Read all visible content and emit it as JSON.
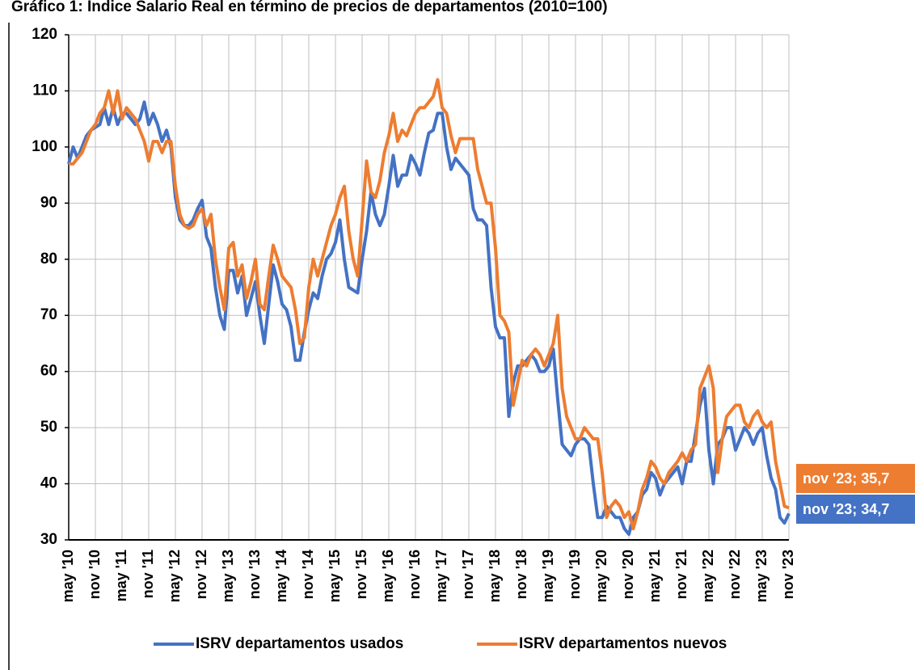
{
  "chart_data": {
    "type": "line",
    "title": "Gráfico 1: Índice Salario Real en término de precios de departamentos (2010=100)",
    "categories": [
      "may '10",
      null,
      null,
      null,
      null,
      null,
      "nov '10",
      null,
      null,
      null,
      null,
      null,
      "may '11",
      null,
      null,
      null,
      null,
      null,
      "nov '11",
      null,
      null,
      null,
      null,
      null,
      "may '12",
      null,
      null,
      null,
      null,
      null,
      "nov '12",
      null,
      null,
      null,
      null,
      null,
      "may '13",
      null,
      null,
      null,
      null,
      null,
      "nov '13",
      null,
      null,
      null,
      null,
      null,
      "may '14",
      null,
      null,
      null,
      null,
      null,
      "nov '14",
      null,
      null,
      null,
      null,
      null,
      "may '15",
      null,
      null,
      null,
      null,
      null,
      "nov '15",
      null,
      null,
      null,
      null,
      null,
      "may '16",
      null,
      null,
      null,
      null,
      null,
      "nov '16",
      null,
      null,
      null,
      null,
      null,
      "may '17",
      null,
      null,
      null,
      null,
      null,
      "nov '17",
      null,
      null,
      null,
      null,
      null,
      "may '18",
      null,
      null,
      null,
      null,
      null,
      "nov '18",
      null,
      null,
      null,
      null,
      null,
      "may '19",
      null,
      null,
      null,
      null,
      null,
      "nov '19",
      null,
      null,
      null,
      null,
      null,
      "may '20",
      null,
      null,
      null,
      null,
      null,
      "nov '20",
      null,
      null,
      null,
      null,
      null,
      "may '21",
      null,
      null,
      null,
      null,
      null,
      "nov '21",
      null,
      null,
      null,
      null,
      null,
      "may '22",
      null,
      null,
      null,
      null,
      null,
      "nov '22",
      null,
      null,
      null,
      null,
      null,
      "may '23",
      null,
      null,
      null,
      null,
      null,
      "nov '23"
    ],
    "series": [
      {
        "name": "ISRV departamentos usados",
        "color": "#4472c4",
        "values": [
          97,
          100,
          98,
          100,
          102,
          103,
          103.5,
          104,
          107,
          104,
          107,
          104,
          106,
          106,
          105,
          104,
          105,
          108,
          104,
          106,
          104,
          101,
          103,
          100,
          91,
          87,
          86,
          86,
          87,
          89,
          90.5,
          84,
          82,
          75,
          70,
          67.5,
          78,
          78,
          74,
          77,
          70,
          73,
          76,
          70,
          65,
          72,
          79,
          76,
          72,
          71,
          68,
          62,
          62,
          67,
          71,
          74,
          73,
          77,
          80,
          81,
          83,
          87,
          80,
          75,
          74.5,
          74,
          80,
          85,
          92,
          88,
          86,
          88,
          93,
          98.5,
          93,
          95,
          95,
          98.5,
          97,
          95,
          99,
          102.5,
          103,
          106,
          106,
          100,
          96,
          98,
          97,
          96,
          95,
          89,
          87,
          87,
          86,
          75,
          68,
          66,
          66,
          52,
          58,
          61,
          61,
          62,
          63,
          62,
          60,
          60,
          61,
          64,
          55,
          47,
          46,
          45,
          47,
          48,
          48,
          47,
          40,
          34,
          34,
          36,
          35,
          34,
          34,
          32,
          31,
          34,
          35,
          38,
          39,
          42,
          41,
          38,
          40,
          41,
          42,
          43,
          40,
          44,
          44,
          49,
          54,
          57,
          46,
          40,
          47,
          48,
          50,
          50,
          46,
          48,
          50,
          49,
          47,
          49,
          50,
          45,
          41,
          39,
          34,
          33,
          34.7
        ],
        "value_labels": [
          null,
          null,
          null,
          null,
          null,
          null,
          null,
          null,
          null,
          null,
          null,
          null,
          null,
          null,
          null,
          null,
          null,
          null,
          null,
          null,
          null,
          null,
          null,
          null,
          null,
          null,
          null,
          null,
          null,
          null,
          null,
          null,
          null,
          null,
          null,
          null,
          null,
          null,
          null,
          null,
          null,
          null,
          null,
          null,
          null,
          null,
          null,
          null,
          null,
          null,
          null,
          null,
          null,
          null,
          null,
          null,
          null,
          null,
          null,
          null,
          null,
          null,
          null,
          null,
          null,
          null,
          null,
          null,
          null,
          null,
          null,
          null,
          null,
          null,
          null,
          null,
          null,
          null,
          null,
          null,
          null,
          null,
          null,
          null,
          null,
          null,
          null,
          null,
          null,
          null,
          null,
          null,
          null,
          null,
          null,
          null,
          null,
          null,
          null,
          null,
          null,
          null,
          null,
          null,
          null,
          null,
          null,
          null,
          null,
          null,
          null,
          null,
          null,
          null,
          null,
          null,
          null,
          null,
          null,
          null,
          null,
          null,
          null,
          null,
          null,
          null,
          null,
          null,
          null,
          null,
          null,
          null,
          null,
          null,
          null,
          null,
          null,
          null,
          null,
          null,
          null,
          null,
          null,
          null,
          null,
          null,
          null,
          null,
          null,
          null,
          null,
          null,
          null,
          null,
          null,
          null,
          null,
          null,
          null,
          null,
          null,
          null,
          "nov '23; 34,7"
        ]
      },
      {
        "name": "ISRV departamentos nuevos",
        "color": "#ed7d31",
        "values": [
          97,
          97,
          98,
          99,
          101,
          103,
          104,
          106,
          107,
          110,
          106,
          110,
          105,
          107,
          106,
          105,
          103,
          101,
          97.5,
          101,
          101,
          99,
          101,
          101,
          93,
          88,
          86,
          85.5,
          86,
          88,
          89,
          86,
          88,
          80,
          75,
          71,
          82,
          83,
          77,
          79,
          73,
          76,
          80,
          72,
          71,
          77,
          82.5,
          80,
          77,
          76,
          75,
          71,
          65,
          66,
          75,
          80,
          77,
          80,
          83,
          86,
          88,
          91,
          93,
          85,
          80,
          77,
          87,
          97.5,
          92,
          91,
          94,
          99,
          102,
          106,
          101,
          103,
          102,
          104,
          106,
          107,
          107,
          108,
          109,
          112,
          107,
          106,
          102,
          99,
          101.5,
          101.5,
          101.5,
          101.5,
          96,
          93,
          90,
          90,
          82,
          70,
          69,
          67,
          54,
          58,
          62,
          61,
          63,
          64,
          63,
          61,
          63,
          65,
          70,
          57,
          52,
          50,
          48,
          48,
          50,
          49,
          48,
          48,
          42,
          34,
          36,
          37,
          36,
          34,
          35,
          32,
          35,
          39,
          41,
          44,
          43,
          41,
          40,
          42,
          43,
          44,
          45.5,
          44,
          46,
          47,
          57,
          59,
          61,
          57,
          42,
          48,
          52,
          53,
          54,
          54,
          51,
          50,
          52,
          53,
          51,
          50,
          51,
          44,
          40,
          36,
          35.7
        ],
        "value_labels": [
          null,
          null,
          null,
          null,
          null,
          null,
          null,
          null,
          null,
          null,
          null,
          null,
          null,
          null,
          null,
          null,
          null,
          null,
          null,
          null,
          null,
          null,
          null,
          null,
          null,
          null,
          null,
          null,
          null,
          null,
          null,
          null,
          null,
          null,
          null,
          null,
          null,
          null,
          null,
          null,
          null,
          null,
          null,
          null,
          null,
          null,
          null,
          null,
          null,
          null,
          null,
          null,
          null,
          null,
          null,
          null,
          null,
          null,
          null,
          null,
          null,
          null,
          null,
          null,
          null,
          null,
          null,
          null,
          null,
          null,
          null,
          null,
          null,
          null,
          null,
          null,
          null,
          null,
          null,
          null,
          null,
          null,
          null,
          null,
          null,
          null,
          null,
          null,
          null,
          null,
          null,
          null,
          null,
          null,
          null,
          null,
          null,
          null,
          null,
          null,
          null,
          null,
          null,
          null,
          null,
          null,
          null,
          null,
          null,
          null,
          null,
          null,
          null,
          null,
          null,
          null,
          null,
          null,
          null,
          null,
          null,
          null,
          null,
          null,
          null,
          null,
          null,
          null,
          null,
          null,
          null,
          null,
          null,
          null,
          null,
          null,
          null,
          null,
          null,
          null,
          null,
          null,
          null,
          null,
          null,
          null,
          null,
          null,
          null,
          null,
          null,
          null,
          null,
          null,
          null,
          null,
          null,
          null,
          null,
          null,
          null,
          null,
          "nov '23; 35,7"
        ]
      }
    ],
    "ylim": [
      30,
      120
    ],
    "yticks": [
      30,
      40,
      50,
      60,
      70,
      80,
      90,
      100,
      110,
      120
    ],
    "grid": true,
    "legend": "bottom"
  }
}
